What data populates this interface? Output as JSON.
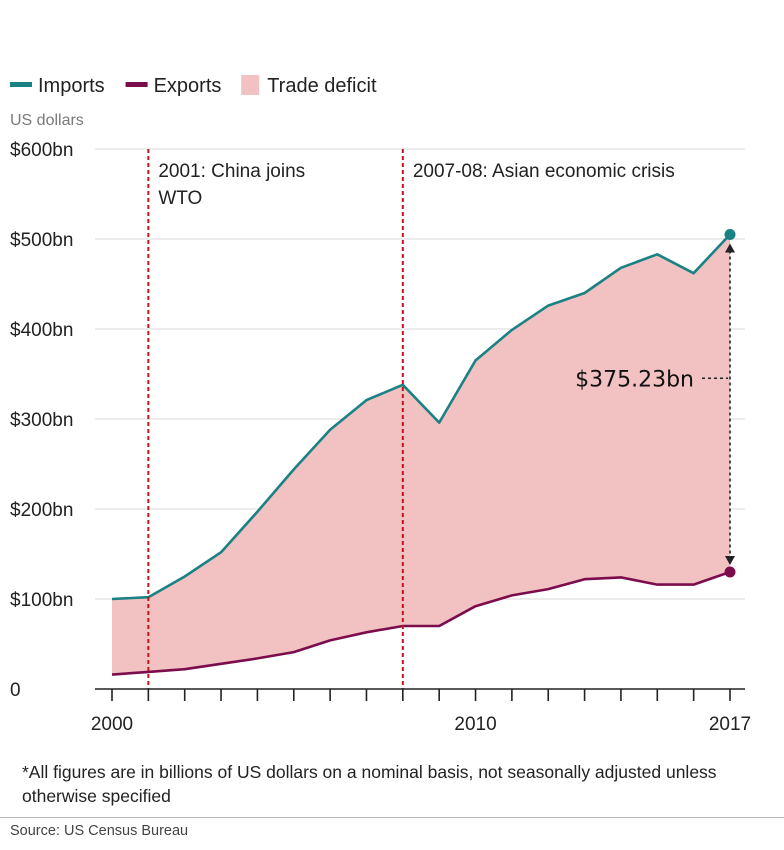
{
  "chart_data": {
    "type": "area",
    "unit_label": "US dollars",
    "legend": {
      "placement": "top-left",
      "items": [
        {
          "label": "Imports",
          "color": "#1a8284",
          "swatch": "line"
        },
        {
          "label": "Exports",
          "color": "#7b0d4d",
          "swatch": "line"
        },
        {
          "label": "Trade deficit",
          "color": "#f2c1c1",
          "swatch": "box"
        }
      ]
    },
    "ylim": [
      0,
      600
    ],
    "xlim": [
      2000,
      2017
    ],
    "y_ticks": [
      {
        "value": 0,
        "label": "0"
      },
      {
        "value": 100,
        "label": "$100bn"
      },
      {
        "value": 200,
        "label": "$200bn"
      },
      {
        "value": 300,
        "label": "$300bn"
      },
      {
        "value": 400,
        "label": "$400bn"
      },
      {
        "value": 500,
        "label": "$500bn"
      },
      {
        "value": 600,
        "label": "$600bn"
      }
    ],
    "x_ticks": [
      {
        "value": 2000,
        "label": "2000"
      },
      {
        "value": 2010,
        "label": "2010"
      },
      {
        "value": 2017,
        "label": "2017"
      }
    ],
    "grid": true,
    "x": [
      2000,
      2001,
      2002,
      2003,
      2004,
      2005,
      2006,
      2007,
      2008,
      2009,
      2010,
      2011,
      2012,
      2013,
      2014,
      2015,
      2016,
      2017
    ],
    "series": [
      {
        "name": "Imports",
        "color": "#1a8284",
        "values": [
          100,
          102,
          125,
          152,
          197,
          244,
          288,
          321,
          338,
          296,
          365,
          399,
          426,
          440,
          468,
          483,
          462,
          505
        ]
      },
      {
        "name": "Exports",
        "color": "#7b0d4d",
        "values": [
          16,
          19,
          22,
          28,
          34,
          41,
          54,
          63,
          70,
          70,
          92,
          104,
          111,
          122,
          124,
          116,
          116,
          130
        ]
      }
    ],
    "fill_between": {
      "label": "Trade deficit",
      "upper": "Imports",
      "lower": "Exports",
      "color": "#f2c1c1"
    },
    "annotations": [
      {
        "x": 2001,
        "text_lines": [
          "2001: China joins",
          "WTO"
        ],
        "color": "#c0161d"
      },
      {
        "x": 2008,
        "text_lines": [
          "2007-08: Asian economic crisis"
        ],
        "color": "#c0161d"
      }
    ],
    "callout": {
      "x": 2017,
      "from": 130,
      "to": 505,
      "text": "$375.23bn"
    }
  },
  "footnote": "*All figures are in billions of US dollars on a nominal basis, not seasonally adjusted unless otherwise specified",
  "source": "Source: US Census Bureau"
}
